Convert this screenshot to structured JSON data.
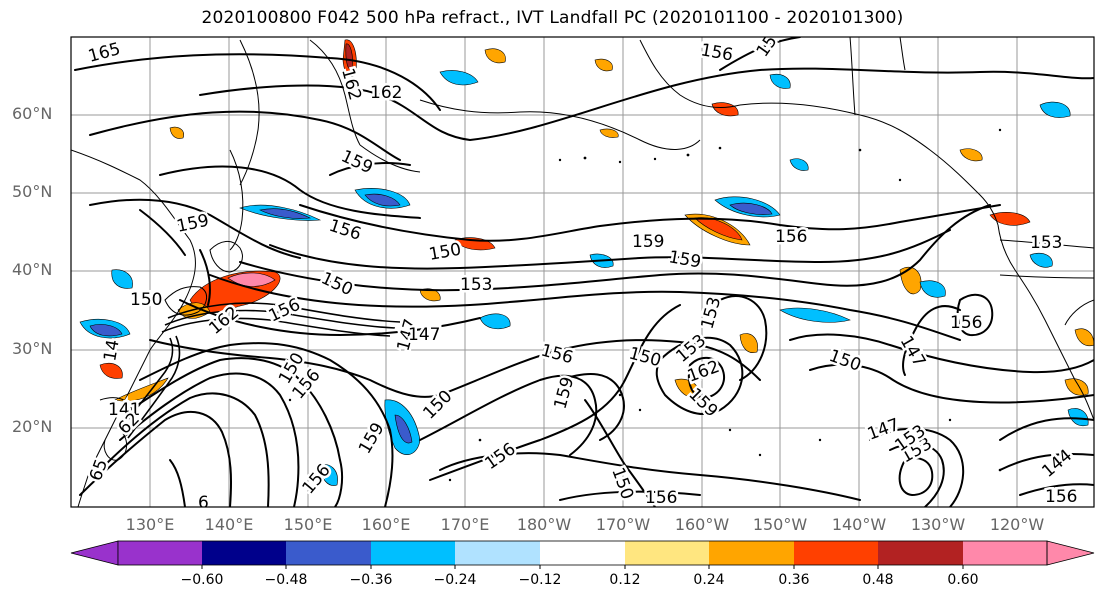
{
  "title": "2020100800 F042 500 hPa refract., IVT Landfall PC (2020101100 - 2020101300)",
  "lat_labels": [
    "60°N",
    "50°N",
    "40°N",
    "30°N",
    "20°N"
  ],
  "lon_labels": [
    "130°E",
    "140°E",
    "150°E",
    "160°E",
    "170°E",
    "180°W",
    "170°W",
    "160°W",
    "150°W",
    "140°W",
    "130°W",
    "120°W"
  ],
  "colorbar": {
    "colors": [
      "#9932cc",
      "#00008b",
      "#3a5bcc",
      "#00bfff",
      "#b0e2ff",
      "#ffffff",
      "#ffe680",
      "#ffa500",
      "#ff4000",
      "#b22222",
      "#ff88aa"
    ],
    "ticks": [
      "−0.60",
      "−0.48",
      "−0.36",
      "−0.24",
      "−0.12",
      "0.12",
      "0.24",
      "0.36",
      "0.48",
      "0.60"
    ]
  },
  "contour_labels": [
    "165",
    "162",
    "162",
    "159",
    "156",
    "159",
    "162",
    "159",
    "156",
    "150",
    "153",
    "150",
    "162",
    "156",
    "150",
    "147",
    "153",
    "159",
    "162",
    "159",
    "156",
    "153",
    "147",
    "150",
    "156",
    "150",
    "147",
    "153",
    "156",
    "159",
    "156",
    "150",
    "156",
    "159",
    "156",
    "150",
    "141",
    "156",
    "147",
    "153",
    "156",
    "144",
    "153",
    "156",
    "6",
    "62",
    "65",
    "14",
    "150"
  ],
  "legend_title": ""
}
